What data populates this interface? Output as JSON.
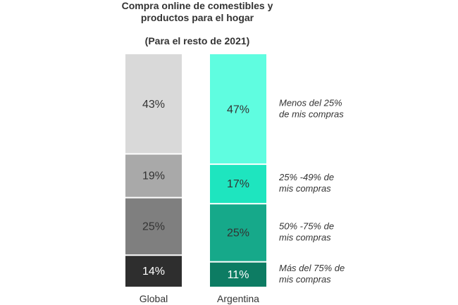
{
  "chart_data": {
    "type": "stacked-bar",
    "title_lines": [
      "Compra online de comestibles y",
      "productos para el hogar"
    ],
    "subtitle": "(Para el resto de 2021)",
    "categories": [
      "Global",
      "Argentina"
    ],
    "series": [
      {
        "name_lines": [
          "Más del 75% de",
          "mis compras"
        ],
        "values": [
          14,
          11
        ],
        "labels": [
          "14%",
          "11%"
        ],
        "colors": [
          "#2e2e2e",
          "#0d7c63"
        ],
        "text_colors": [
          "#ffffff",
          "#ffffff"
        ]
      },
      {
        "name_lines": [
          "50% -75% de",
          "mis compras"
        ],
        "values": [
          25,
          25
        ],
        "labels": [
          "25%",
          "25%"
        ],
        "colors": [
          "#7f7f7f",
          "#16a98a"
        ],
        "text_colors": [
          "#333333",
          "#333333"
        ]
      },
      {
        "name_lines": [
          "25% -49% de",
          "mis compras"
        ],
        "values": [
          19,
          17
        ],
        "labels": [
          "19%",
          "17%"
        ],
        "colors": [
          "#a9a9a9",
          "#1ee5bf"
        ],
        "text_colors": [
          "#333333",
          "#333333"
        ]
      },
      {
        "name_lines": [
          "Menos del 25%",
          "de mis compras"
        ],
        "values": [
          43,
          47
        ],
        "labels": [
          "43%",
          "47%"
        ],
        "colors": [
          "#d9d9d9",
          "#5ffde0"
        ],
        "text_colors": [
          "#333333",
          "#333333"
        ]
      }
    ],
    "grid": false,
    "legend_placement": "right"
  }
}
